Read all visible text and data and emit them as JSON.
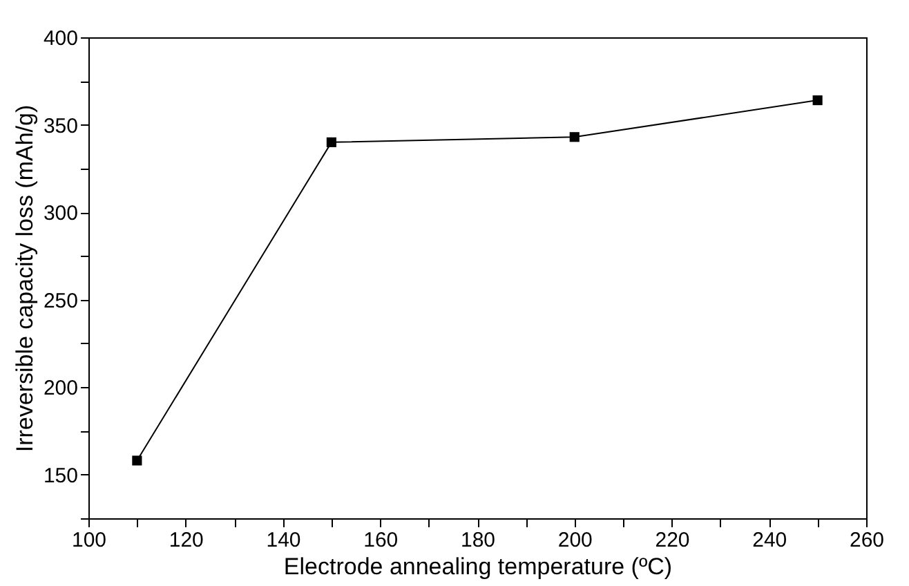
{
  "chart_data": {
    "type": "line",
    "xlabel": "Electrode annealing temperature (ºC)",
    "ylabel": "Irreversible capacity loss (mAh/g)",
    "x": [
      110,
      150,
      200,
      250
    ],
    "series": [
      {
        "color": "#000000",
        "values": [
          158,
          340,
          343,
          364
        ]
      }
    ],
    "xlim": [
      100,
      260
    ],
    "xticks": [
      100,
      {
        "value": 110,
        "label": null
      },
      120,
      {
        "value": 130,
        "label": null
      },
      140,
      {
        "value": 150,
        "label": null
      },
      160,
      {
        "value": 170,
        "label": null
      },
      180,
      {
        "value": 190,
        "label": null
      },
      200,
      {
        "value": 210,
        "label": null
      },
      220,
      {
        "value": 230,
        "label": null
      },
      240,
      {
        "value": 250,
        "label": null
      },
      260
    ],
    "ylim": [
      125,
      400
    ],
    "yticks": [
      {
        "value": 125,
        "label": null
      },
      150,
      {
        "value": 175,
        "label": null
      },
      200,
      {
        "value": 225,
        "label": null
      },
      250,
      {
        "value": 275,
        "label": null
      },
      300,
      {
        "value": 325,
        "label": null
      },
      350,
      {
        "value": 375,
        "label": null
      },
      400
    ],
    "marker": "square",
    "line_style": "solid",
    "grid": false
  }
}
